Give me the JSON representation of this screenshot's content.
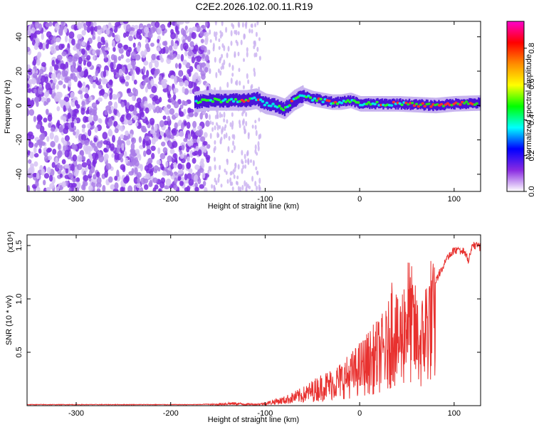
{
  "title": "C2E2.2026.102.00.11.R19",
  "chart_data": [
    {
      "type": "heatmap",
      "xlabel": "Height of straight line (km)",
      "ylabel": "Frequency (Hz)",
      "xlim": [
        -352,
        128
      ],
      "ylim": [
        -50,
        49
      ],
      "xticks": [
        -300,
        -200,
        -100,
        0,
        100
      ],
      "xtick_labels": [
        "-300",
        "-200",
        "-100",
        "0",
        "100"
      ],
      "yticks": [
        -40,
        -20,
        0,
        20,
        40
      ],
      "ytick_labels": [
        "-40",
        "-20",
        "0",
        "20",
        "40"
      ],
      "colorbar": {
        "label": "Normalized spectral amplitude",
        "range": [
          0,
          0.95
        ],
        "ticks": [
          0,
          0.2,
          0.4,
          0.6,
          0.8
        ],
        "tick_labels": [
          "0.0",
          "0.2",
          "0.4",
          "0.6",
          "0.8"
        ],
        "colors": [
          "#ffffff",
          "#8a2be2",
          "#0000ff",
          "#00ffff",
          "#00ff00",
          "#ffff00",
          "#ff8c00",
          "#ff0000",
          "#ff00cc"
        ]
      },
      "ridge": {
        "x": [
          -175,
          -160,
          -140,
          -120,
          -110,
          -100,
          -90,
          -80,
          -70,
          -60,
          -50,
          -40,
          -30,
          -20,
          -10,
          0,
          20,
          40,
          60,
          80,
          100,
          128
        ],
        "y": [
          2,
          3,
          3,
          3,
          4,
          1,
          0,
          -2,
          3,
          6,
          4,
          3,
          2,
          2,
          3,
          1,
          1,
          1,
          0.5,
          0,
          1,
          1.5
        ]
      },
      "noise_region_x": [
        -352,
        -160
      ],
      "grid": false
    },
    {
      "type": "line",
      "xlabel": "Height of straight line (km)",
      "ylabel": "SNR (10 * v/v)",
      "scale_label": "(x10⁴)",
      "xlim": [
        -352,
        128
      ],
      "ylim": [
        0,
        1.6
      ],
      "xticks": [
        -300,
        -200,
        -100,
        0,
        100
      ],
      "xtick_labels": [
        "-300",
        "-200",
        "-100",
        "0",
        "100"
      ],
      "yticks": [
        0.5,
        1.0,
        1.5
      ],
      "ytick_labels": [
        "0.5",
        "1.0",
        "1.5"
      ],
      "series": [
        {
          "color": "#e8312f",
          "x": [
            -352,
            -300,
            -250,
            -200,
            -170,
            -160,
            -150,
            -140,
            -130,
            -120,
            -110,
            -100,
            -90,
            -80,
            -70,
            -60,
            -50,
            -40,
            -30,
            -20,
            -10,
            0,
            10,
            20,
            30,
            35,
            40,
            45,
            50,
            55,
            60,
            65,
            70,
            75,
            80,
            90,
            100,
            110,
            115,
            120,
            128
          ],
          "y": [
            0.01,
            0.01,
            0.01,
            0.01,
            0.01,
            0.015,
            0.02,
            0.03,
            0.03,
            0.02,
            0.02,
            0.03,
            0.06,
            0.08,
            0.12,
            0.16,
            0.22,
            0.28,
            0.32,
            0.38,
            0.45,
            0.55,
            0.65,
            0.75,
            0.85,
            1.25,
            0.9,
            1.05,
            1.35,
            1.2,
            1.0,
            0.9,
            1.15,
            1.3,
            1.2,
            1.38,
            1.5,
            1.48,
            1.4,
            1.55,
            1.52
          ]
        }
      ],
      "grid": false
    }
  ]
}
